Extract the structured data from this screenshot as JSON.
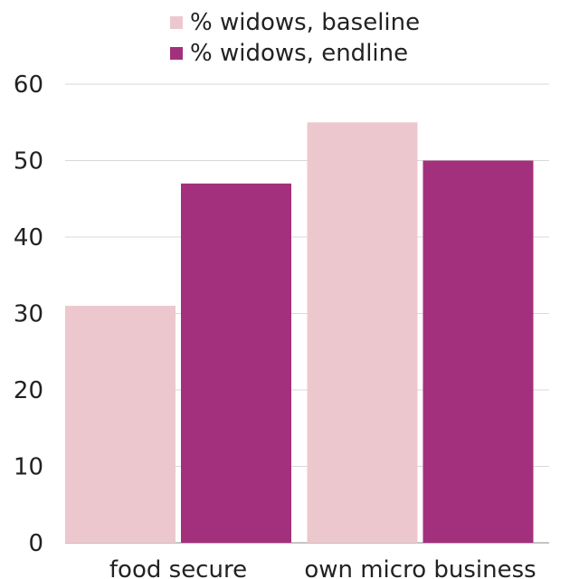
{
  "chart_data": {
    "type": "bar",
    "categories": [
      "food secure",
      "own micro business"
    ],
    "series": [
      {
        "name": "% widows, baseline",
        "values": [
          31,
          55
        ],
        "color": "#ecc8ce"
      },
      {
        "name": "% widows, endline",
        "values": [
          47,
          50
        ],
        "color": "#a3307c"
      }
    ],
    "ylim": [
      0,
      60
    ],
    "yticks": [
      "0",
      "10",
      "20",
      "30",
      "40",
      "50",
      "60"
    ],
    "grid": true,
    "legend_position": "top-center"
  }
}
